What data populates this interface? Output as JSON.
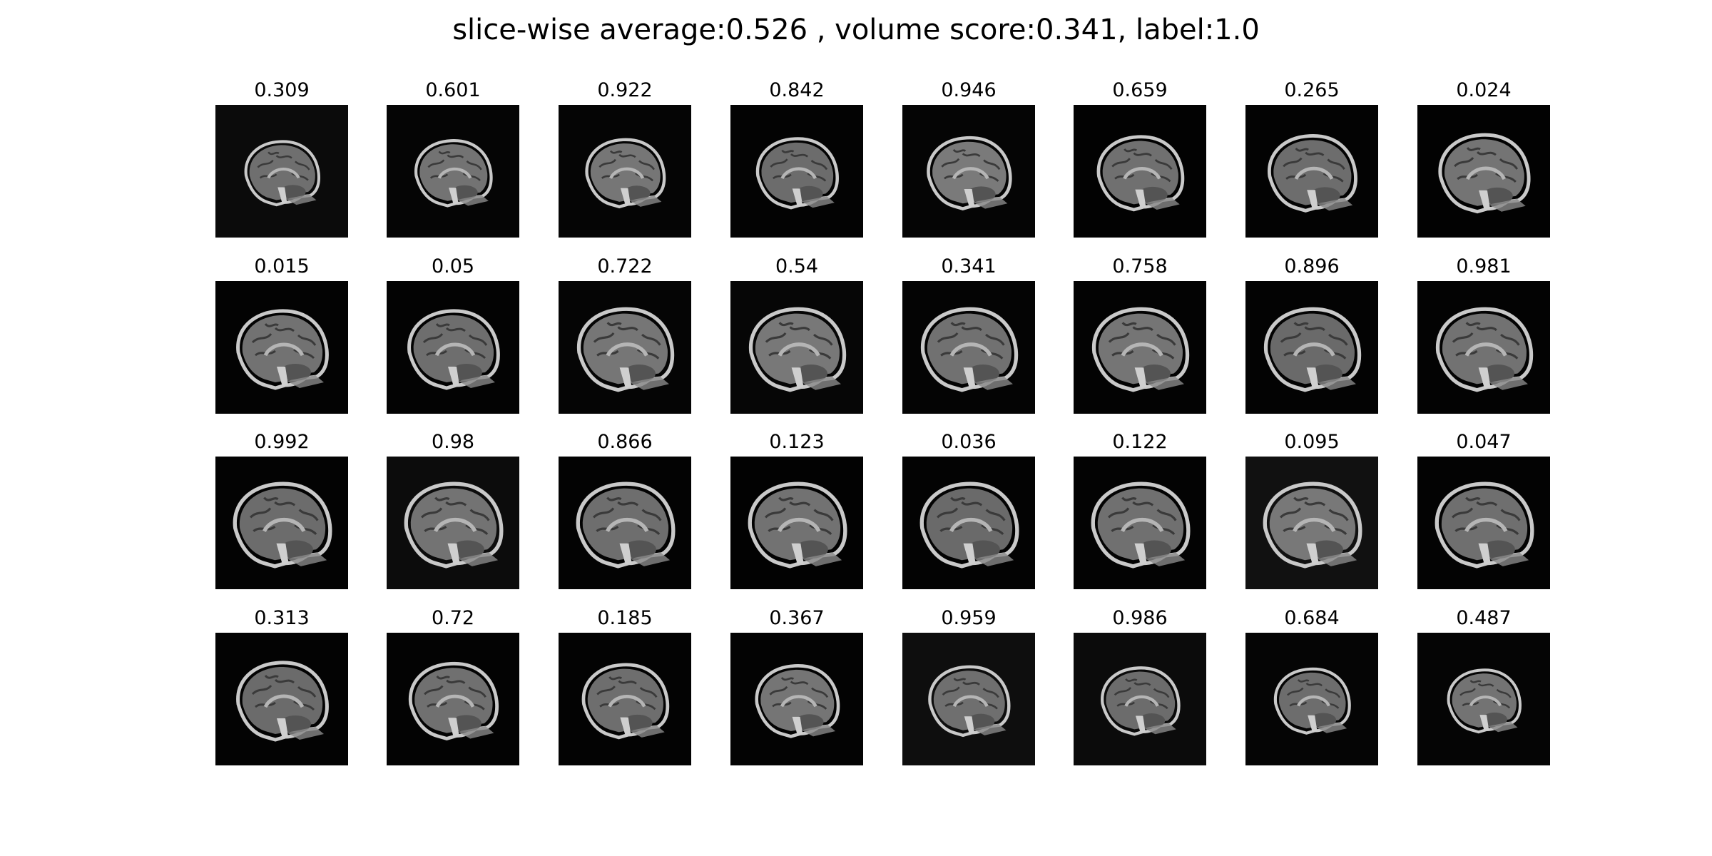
{
  "title": "slice-wise average:0.526 , volume score:0.341, label:1.0",
  "grid": {
    "rows": 4,
    "cols": 8
  },
  "slices": [
    {
      "score": "0.309",
      "background": "#0b0b0b",
      "brain": "#6f6f6f"
    },
    {
      "score": "0.601",
      "background": "#050505",
      "brain": "#737373"
    },
    {
      "score": "0.922",
      "background": "#050505",
      "brain": "#767676"
    },
    {
      "score": "0.842",
      "background": "#030303",
      "brain": "#6c6c6c"
    },
    {
      "score": "0.946",
      "background": "#050505",
      "brain": "#7a7a7a"
    },
    {
      "score": "0.659",
      "background": "#020202",
      "brain": "#707070"
    },
    {
      "score": "0.265",
      "background": "#030303",
      "brain": "#6d6d6d"
    },
    {
      "score": "0.024",
      "background": "#020202",
      "brain": "#747474"
    },
    {
      "score": "0.015",
      "background": "#030303",
      "brain": "#727272"
    },
    {
      "score": "0.05",
      "background": "#030303",
      "brain": "#6e6e6e"
    },
    {
      "score": "0.722",
      "background": "#050505",
      "brain": "#767676"
    },
    {
      "score": "0.54",
      "background": "#060606",
      "brain": "#787878"
    },
    {
      "score": "0.341",
      "background": "#040404",
      "brain": "#717171"
    },
    {
      "score": "0.758",
      "background": "#030303",
      "brain": "#757575"
    },
    {
      "score": "0.896",
      "background": "#030303",
      "brain": "#6a6a6a"
    },
    {
      "score": "0.981",
      "background": "#030303",
      "brain": "#727272"
    },
    {
      "score": "0.992",
      "background": "#030303",
      "brain": "#6c6c6c"
    },
    {
      "score": "0.98",
      "background": "#0c0c0c",
      "brain": "#737373"
    },
    {
      "score": "0.866",
      "background": "#030303",
      "brain": "#6e6e6e"
    },
    {
      "score": "0.123",
      "background": "#020202",
      "brain": "#727272"
    },
    {
      "score": "0.036",
      "background": "#030303",
      "brain": "#6a6a6a"
    },
    {
      "score": "0.122",
      "background": "#030303",
      "brain": "#707070"
    },
    {
      "score": "0.095",
      "background": "#111111",
      "brain": "#787878"
    },
    {
      "score": "0.047",
      "background": "#030303",
      "brain": "#6f6f6f"
    },
    {
      "score": "0.313",
      "background": "#030303",
      "brain": "#6b6b6b"
    },
    {
      "score": "0.72",
      "background": "#030303",
      "brain": "#707070"
    },
    {
      "score": "0.185",
      "background": "#030303",
      "brain": "#6e6e6e"
    },
    {
      "score": "0.367",
      "background": "#030303",
      "brain": "#757575"
    },
    {
      "score": "0.959",
      "background": "#0e0e0e",
      "brain": "#6f6f6f"
    },
    {
      "score": "0.986",
      "background": "#0b0b0b",
      "brain": "#6c6c6c"
    },
    {
      "score": "0.684",
      "background": "#050505",
      "brain": "#6d6d6d"
    },
    {
      "score": "0.487",
      "background": "#050505",
      "brain": "#737373"
    }
  ]
}
